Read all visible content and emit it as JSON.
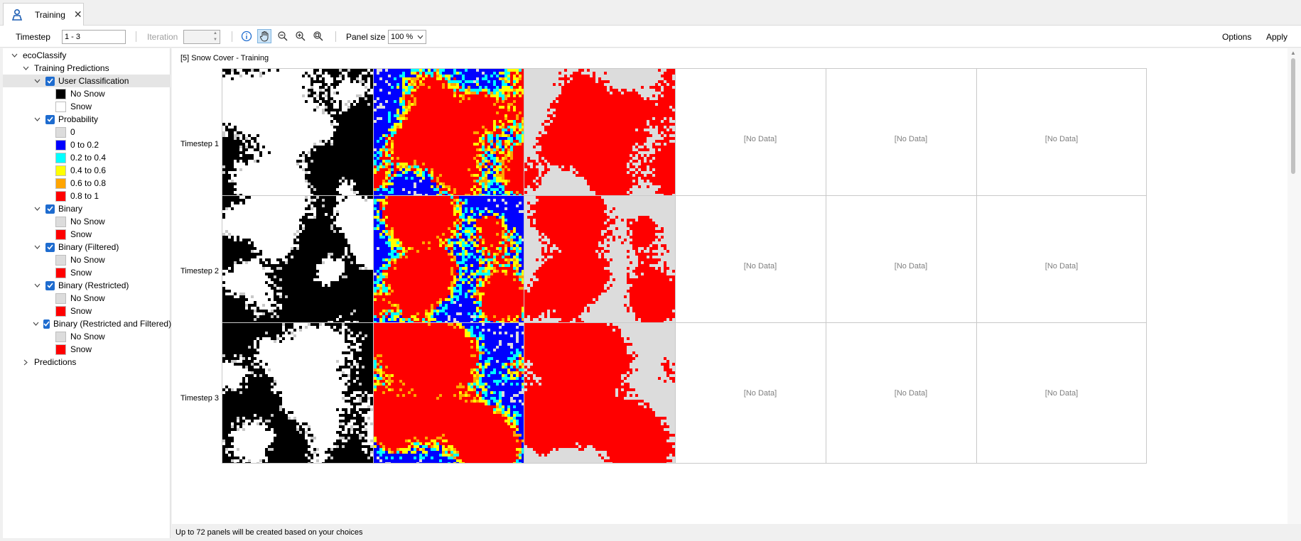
{
  "tab": {
    "title": "Training",
    "icon": "person-map-icon",
    "close": "✕"
  },
  "toolbar": {
    "timestep_label": "Timestep",
    "timestep_value": "1 - 3",
    "iteration_label": "Iteration",
    "iteration_value": "",
    "panel_size_label": "Panel size",
    "panel_size_value": "100 %",
    "options_label": "Options",
    "apply_label": "Apply"
  },
  "tree": {
    "root": "ecoClassify",
    "training": "Training Predictions",
    "predictions": "Predictions",
    "groups": [
      {
        "label": "User Classification",
        "items": [
          {
            "label": "No Snow",
            "color": "#000000"
          },
          {
            "label": "Snow",
            "color": "#ffffff"
          }
        ]
      },
      {
        "label": "Probability",
        "items": [
          {
            "label": "0",
            "color": "#dcdcdc"
          },
          {
            "label": "0 to 0.2",
            "color": "#0000ff"
          },
          {
            "label": "0.2 to 0.4",
            "color": "#00ffff"
          },
          {
            "label": "0.4 to 0.6",
            "color": "#ffff00"
          },
          {
            "label": "0.6 to 0.8",
            "color": "#ffa500"
          },
          {
            "label": "0.8 to 1",
            "color": "#ff0000"
          }
        ]
      },
      {
        "label": "Binary",
        "items": [
          {
            "label": "No Snow",
            "color": "#dcdcdc"
          },
          {
            "label": "Snow",
            "color": "#ff0000"
          }
        ]
      },
      {
        "label": "Binary (Filtered)",
        "items": [
          {
            "label": "No Snow",
            "color": "#dcdcdc"
          },
          {
            "label": "Snow",
            "color": "#ff0000"
          }
        ]
      },
      {
        "label": "Binary (Restricted)",
        "items": [
          {
            "label": "No Snow",
            "color": "#dcdcdc"
          },
          {
            "label": "Snow",
            "color": "#ff0000"
          }
        ]
      },
      {
        "label": "Binary (Restricted and Filtered)",
        "items": [
          {
            "label": "No Snow",
            "color": "#dcdcdc"
          },
          {
            "label": "Snow",
            "color": "#ff0000"
          }
        ]
      }
    ]
  },
  "main": {
    "title": "[5] Snow Cover - Training",
    "columns": [
      "User Classification",
      "Probability",
      "Binary",
      "Binary (Filtered)",
      "Binary (Restricted)",
      "Binary (Restricted and Filtered)"
    ],
    "rows": [
      "Timestep 1",
      "Timestep 2",
      "Timestep 3"
    ],
    "no_data": "[No Data]"
  },
  "status": "Up to 72 panels will be created based on your choices"
}
